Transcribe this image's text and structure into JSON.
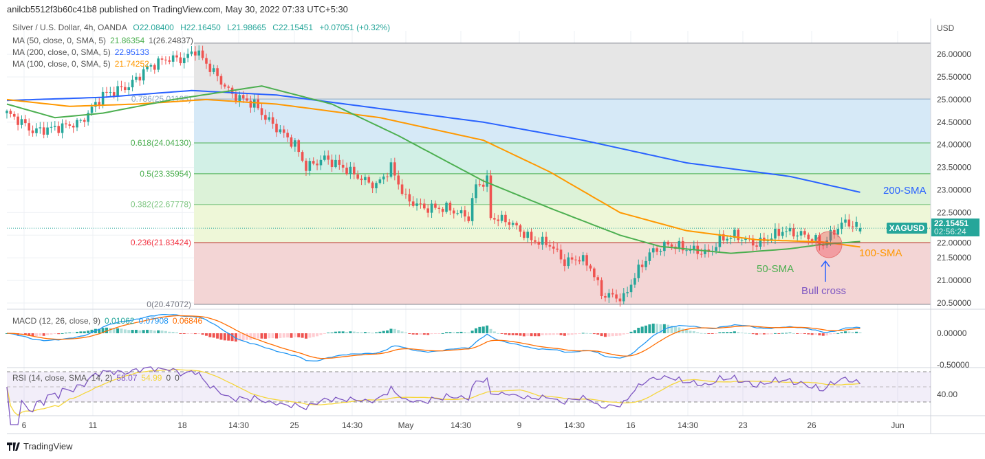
{
  "publisher_line": "anilcb5512f3b60c41b8 published on TradingView.com, May 30, 2022 07:33 UTC+5:30",
  "legend": {
    "symbol": "Silver / U.S. Dollar, 4h, OANDA",
    "o": "O22.08400",
    "h": "H22.16450",
    "l": "L21.98665",
    "c": "C22.15451",
    "chg": "+0.07051 (+0.32%)",
    "ma50": {
      "label": "MA (50, close, 0, SMA, 5)",
      "value": "21.86354",
      "extra": "1(26.24837)"
    },
    "ma200": {
      "label": "MA (200, close, 0, SMA, 5)",
      "value": "22.95133"
    },
    "ma100": {
      "label": "MA (100, close, 0, SMA, 5)",
      "value": "21.74252"
    }
  },
  "macd": {
    "label": "MACD (12, 26, close, 9)",
    "hist": "0.01062",
    "macd": "0.07908",
    "signal": "0.06846"
  },
  "rsi": {
    "label": "RSI (14, close, SMA, 14, 2)",
    "rsi": "58.07",
    "sma": "54.99",
    "a": "0",
    "b": "0"
  },
  "colors": {
    "up": "#26a69a",
    "down": "#ef5350",
    "ma50": "#4caf50",
    "ma200": "#2962ff",
    "ma100": "#ff9800",
    "macd": "#2196f3",
    "signal": "#ff6d00",
    "rsi": "#7e57c2",
    "rsi_ma": "#f5d63c"
  },
  "price_tag": {
    "symbol": "XAGUSD",
    "price": "22.15451",
    "countdown": "02:56:24"
  },
  "currency": "USD",
  "logo": "TradingView",
  "annotations": {
    "sma200": "200-SMA",
    "sma100": "100-SMA",
    "sma50": "50-SMA",
    "bull": "Bull cross"
  },
  "chart_data": {
    "type": "candlestick",
    "title": "Silver / U.S. Dollar, 4h, OANDA",
    "ylabel": "USD",
    "ylim": [
      20.4,
      26.5
    ],
    "price_ticks": [
      "26.00000",
      "25.50000",
      "25.00000",
      "24.50000",
      "24.00000",
      "23.50000",
      "23.00000",
      "22.50000",
      "22.00000",
      "21.50000",
      "21.00000",
      "20.50000"
    ],
    "macd_ticks": [
      "0.00000",
      "-0.50000"
    ],
    "rsi_ticks": [
      "40.00"
    ],
    "x_ticks": [
      "6",
      "11",
      "18",
      "14:30",
      "25",
      "14:30",
      "May",
      "14:30",
      "9",
      "14:30",
      "16",
      "14:30",
      "23",
      "26",
      "Jun"
    ],
    "fib": [
      {
        "ratio": "1",
        "price": 26.24837,
        "label": ""
      },
      {
        "ratio": "0.786",
        "price": 25.01195,
        "label": "0.786(25.01195)"
      },
      {
        "ratio": "0.618",
        "price": 24.0413,
        "label": "0.618(24.04130)"
      },
      {
        "ratio": "0.5",
        "price": 23.35954,
        "label": "0.5(23.35954)"
      },
      {
        "ratio": "0.382",
        "price": 22.67778,
        "label": "0.382(22.67778)"
      },
      {
        "ratio": "0.236",
        "price": 21.83424,
        "label": "0.236(21.83424)"
      },
      {
        "ratio": "0",
        "price": 20.47072,
        "label": "0(20.47072)"
      }
    ],
    "close_keypoints": [
      [
        0,
        24.7
      ],
      [
        4,
        24.5
      ],
      [
        7,
        24.3
      ],
      [
        15,
        24.4
      ],
      [
        20,
        24.5
      ],
      [
        26,
        25.1
      ],
      [
        33,
        25.3
      ],
      [
        38,
        25.7
      ],
      [
        43,
        25.9
      ],
      [
        48,
        25.9
      ],
      [
        51,
        26.1
      ],
      [
        54,
        25.8
      ],
      [
        58,
        25.4
      ],
      [
        61,
        25.1
      ],
      [
        67,
        24.9
      ],
      [
        70,
        24.6
      ],
      [
        74,
        24.3
      ],
      [
        78,
        24.0
      ],
      [
        81,
        23.5
      ],
      [
        86,
        23.7
      ],
      [
        91,
        23.5
      ],
      [
        97,
        23.2
      ],
      [
        100,
        23.1
      ],
      [
        104,
        23.5
      ],
      [
        108,
        22.8
      ],
      [
        113,
        22.6
      ],
      [
        119,
        22.6
      ],
      [
        125,
        22.4
      ],
      [
        127,
        23.1
      ],
      [
        130,
        23.2
      ],
      [
        131,
        22.4
      ],
      [
        136,
        22.3
      ],
      [
        142,
        21.9
      ],
      [
        147,
        21.8
      ],
      [
        151,
        21.4
      ],
      [
        155,
        21.5
      ],
      [
        158,
        21.3
      ],
      [
        161,
        20.7
      ],
      [
        167,
        20.6
      ],
      [
        170,
        21.1
      ],
      [
        174,
        21.6
      ],
      [
        179,
        21.8
      ],
      [
        184,
        21.7
      ],
      [
        190,
        21.6
      ],
      [
        193,
        21.9
      ],
      [
        197,
        22.0
      ],
      [
        203,
        21.8
      ],
      [
        210,
        22.1
      ],
      [
        216,
        22.0
      ],
      [
        221,
        21.8
      ],
      [
        224,
        22.1
      ],
      [
        227,
        22.3
      ],
      [
        231,
        22.15
      ]
    ],
    "sma200": [
      [
        0,
        24.98
      ],
      [
        26,
        25.05
      ],
      [
        50,
        25.2
      ],
      [
        73,
        25.1
      ],
      [
        101,
        24.8
      ],
      [
        129,
        24.5
      ],
      [
        156,
        24.1
      ],
      [
        184,
        23.6
      ],
      [
        212,
        23.3
      ],
      [
        231,
        22.95
      ]
    ],
    "sma100": [
      [
        0,
        25.0
      ],
      [
        17,
        24.85
      ],
      [
        35,
        24.9
      ],
      [
        54,
        25.0
      ],
      [
        73,
        24.9
      ],
      [
        101,
        24.6
      ],
      [
        129,
        24.1
      ],
      [
        147,
        23.4
      ],
      [
        166,
        22.5
      ],
      [
        184,
        22.1
      ],
      [
        203,
        21.9
      ],
      [
        221,
        21.85
      ],
      [
        231,
        21.74
      ]
    ],
    "sma50": [
      [
        0,
        24.9
      ],
      [
        13,
        24.6
      ],
      [
        26,
        24.7
      ],
      [
        45,
        25.0
      ],
      [
        69,
        25.3
      ],
      [
        88,
        24.9
      ],
      [
        106,
        24.2
      ],
      [
        129,
        23.2
      ],
      [
        147,
        22.6
      ],
      [
        166,
        22.0
      ],
      [
        177,
        21.75
      ],
      [
        196,
        21.6
      ],
      [
        212,
        21.7
      ],
      [
        221,
        21.8
      ],
      [
        231,
        21.86
      ]
    ]
  }
}
